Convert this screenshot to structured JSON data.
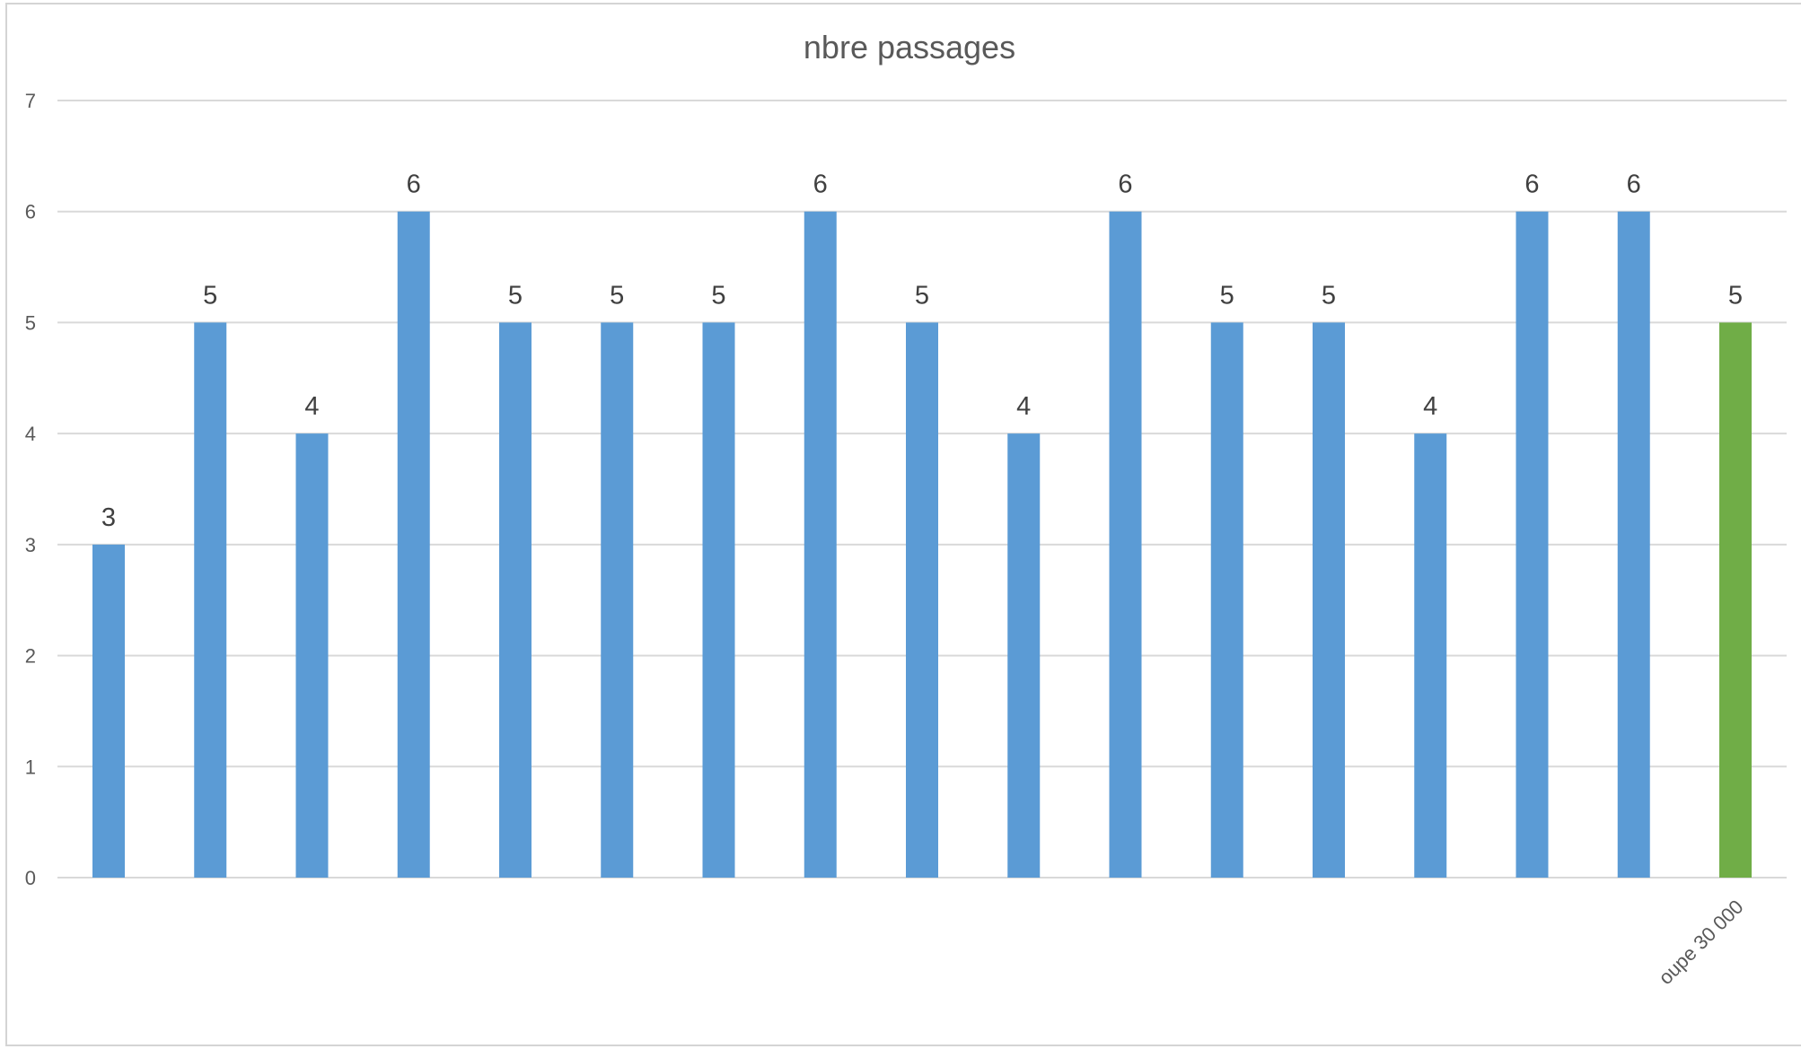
{
  "chart_data": {
    "type": "bar",
    "title": "nbre passages",
    "xlabel": "",
    "ylabel": "",
    "ylim": [
      0,
      7
    ],
    "y_ticks": [
      "0",
      "1",
      "2",
      "3",
      "4",
      "5",
      "6",
      "7"
    ],
    "grid": true,
    "legend": "none",
    "categories": [
      "",
      "",
      "",
      "",
      "",
      "",
      "",
      "",
      "",
      "",
      "",
      "",
      "",
      "",
      "",
      "",
      "oupe 30 000"
    ],
    "values": [
      3,
      5,
      4,
      6,
      5,
      5,
      5,
      6,
      5,
      4,
      6,
      5,
      5,
      4,
      6,
      6,
      5
    ],
    "colors": {
      "default_bar": "#5b9bd5",
      "highlight_bar": "#70ad47",
      "highlight_index": 16
    }
  }
}
